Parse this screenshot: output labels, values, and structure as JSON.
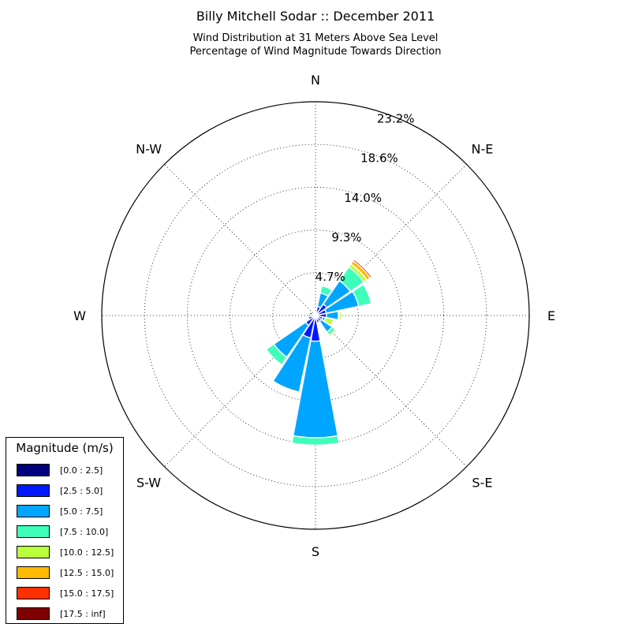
{
  "header": {
    "title": "Billy Mitchell Sodar :: December 2011",
    "subtitle_line1": "Wind Distribution at 31 Meters Above Sea Level",
    "subtitle_line2": "Percentage of Wind Magnitude Towards Direction"
  },
  "legend": {
    "title": "Magnitude (m/s)",
    "bins": [
      {
        "label": "[0.0 : 2.5]",
        "color": "#00007f"
      },
      {
        "label": "[2.5 : 5.0]",
        "color": "#0019ff"
      },
      {
        "label": "[5.0 : 7.5]",
        "color": "#00a5ff"
      },
      {
        "label": "[7.5 : 10.0]",
        "color": "#3dffb9"
      },
      {
        "label": "[10.0 : 12.5]",
        "color": "#b9ff3d"
      },
      {
        "label": "[12.5 : 15.0]",
        "color": "#ffb900"
      },
      {
        "label": "[15.0 : 17.5]",
        "color": "#ff3000"
      },
      {
        "label": "[17.5 : inf]",
        "color": "#7f0000"
      }
    ]
  },
  "chart_data": {
    "type": "windrose",
    "title": "Billy Mitchell Sodar :: December 2011",
    "direction_labels": [
      "N",
      "N-E",
      "E",
      "S-E",
      "S",
      "S-W",
      "W",
      "N-W"
    ],
    "radial_ticks": [
      "4.7%",
      "9.3%",
      "14.0%",
      "18.6%",
      "23.2%"
    ],
    "radial_tick_values": [
      4.65,
      9.3,
      13.95,
      18.6,
      23.25
    ],
    "r_max": 23.25,
    "grid": true,
    "legend_position": "bottom-left",
    "series_names": [
      "[0.0 : 2.5]",
      "[2.5 : 5.0]",
      "[5.0 : 7.5]",
      "[7.5 : 10.0]",
      "[10.0 : 12.5]",
      "[12.5 : 15.0]",
      "[15.0 : 17.5]",
      "[17.5 : inf]"
    ],
    "directions_deg": [
      0,
      22.5,
      45,
      67.5,
      90,
      112.5,
      135,
      157.5,
      180,
      202.5,
      225,
      247.5,
      270,
      292.5,
      315,
      337.5
    ],
    "cumulative_percent": [
      [
        0.2,
        0.4,
        0.5,
        0.5,
        0.5,
        0.5,
        0.5,
        0.5
      ],
      [
        0.3,
        1.0,
        2.5,
        3.3,
        3.4,
        3.5,
        3.5,
        3.5
      ],
      [
        0.3,
        1.5,
        4.6,
        6.4,
        6.8,
        7.2,
        7.4,
        7.4
      ],
      [
        0.3,
        1.2,
        4.8,
        6.2,
        6.2,
        6.2,
        6.2,
        6.2
      ],
      [
        0.3,
        1.2,
        2.5,
        2.6,
        2.8,
        2.8,
        2.8,
        2.8
      ],
      [
        0.3,
        0.8,
        1.1,
        1.1,
        2.0,
        2.0,
        2.0,
        2.0
      ],
      [
        0.3,
        0.8,
        2.2,
        2.6,
        2.8,
        2.8,
        2.8,
        2.8
      ],
      [
        0.3,
        0.8,
        0.8,
        0.8,
        0.8,
        0.8,
        0.8,
        0.8
      ],
      [
        0.3,
        2.8,
        13.3,
        14.1,
        14.1,
        14.1,
        14.1,
        14.1
      ],
      [
        0.3,
        2.5,
        8.5,
        8.5,
        8.5,
        8.5,
        8.5,
        8.5
      ],
      [
        0.3,
        1.3,
        5.5,
        6.5,
        6.5,
        6.5,
        6.5,
        6.5
      ],
      [
        0.3,
        0.8,
        0.8,
        0.8,
        0.8,
        0.8,
        0.8,
        0.8
      ],
      [
        0.3,
        0.5,
        0.8,
        1.0,
        1.0,
        1.0,
        1.0,
        1.0
      ],
      [
        0.3,
        0.7,
        0.7,
        0.7,
        0.7,
        0.7,
        0.7,
        0.7
      ],
      [
        0.2,
        0.2,
        0.2,
        0.2,
        0.2,
        0.2,
        0.2,
        0.2
      ],
      [
        0.2,
        0.2,
        0.2,
        0.2,
        0.2,
        0.2,
        0.2,
        0.2
      ]
    ],
    "extra_bars": [
      {
        "direction_deg": 202.5,
        "cumulative_percent": [
          0.3,
          1.3,
          3.5,
          3.5,
          3.5,
          3.5,
          3.5,
          3.5
        ]
      },
      {
        "direction_deg": 202.5,
        "cumulative_percent": [
          0,
          0,
          0,
          0,
          0,
          0,
          0,
          0
        ]
      }
    ]
  }
}
